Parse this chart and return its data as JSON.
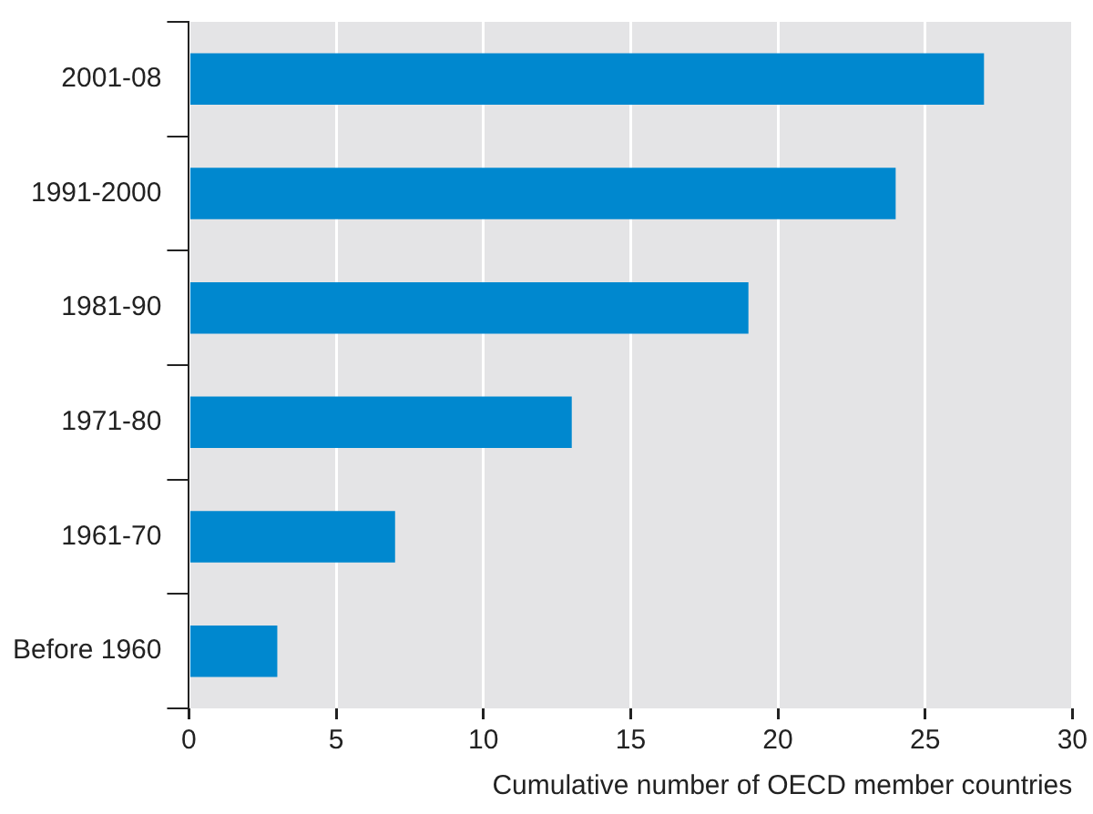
{
  "chart_data": {
    "type": "bar",
    "orientation": "horizontal",
    "categories": [
      "2001-08",
      "1991-2000",
      "1981-90",
      "1971-80",
      "1961-70",
      "Before 1960"
    ],
    "values": [
      27,
      24,
      19,
      13,
      7,
      3
    ],
    "color": "#0088cf",
    "xlabel": "Cumulative number of OECD member countries",
    "xlim": [
      0,
      30
    ],
    "xticks": [
      0,
      5,
      10,
      15,
      20,
      25,
      30
    ],
    "grid": "x",
    "legend": false
  }
}
